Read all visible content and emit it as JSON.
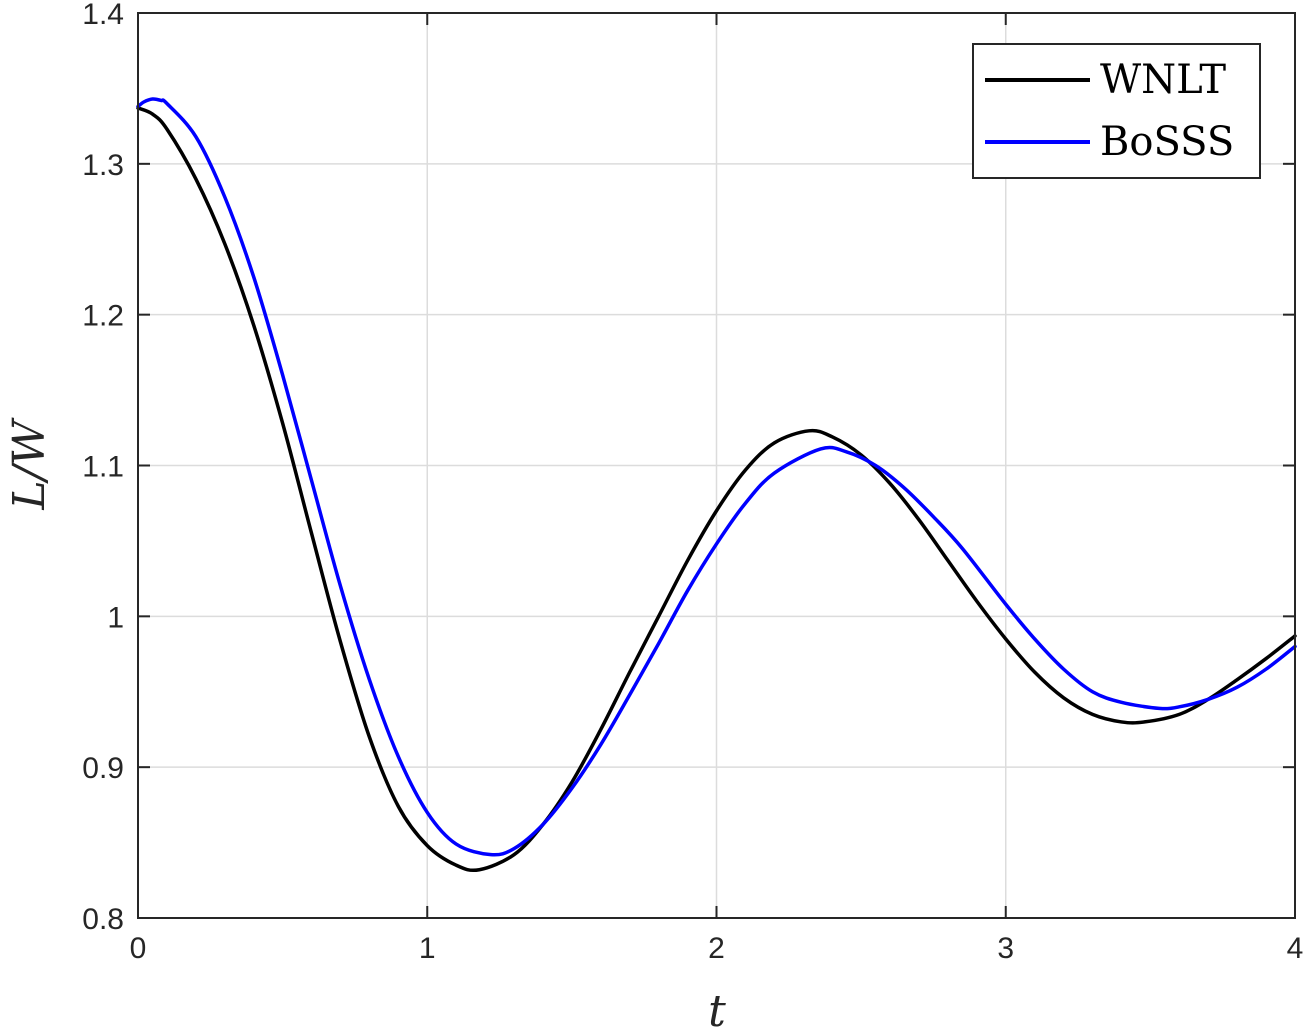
{
  "chart_data": {
    "type": "line",
    "xlabel": "t",
    "ylabel": "L/W",
    "xlim": [
      0,
      4
    ],
    "ylim": [
      0.8,
      1.4
    ],
    "xticks": [
      0,
      1,
      2,
      3,
      4
    ],
    "xtick_labels": [
      "0",
      "1",
      "2",
      "3",
      "4"
    ],
    "yticks": [
      0.8,
      0.9,
      1.0,
      1.1,
      1.2,
      1.3,
      1.4
    ],
    "ytick_labels": [
      "0.8",
      "0.9",
      "1",
      "1.1",
      "1.2",
      "1.3",
      "1.4"
    ],
    "grid": true,
    "legend_position": "top-right",
    "series": [
      {
        "name": "WNLT",
        "color": "#000000",
        "x": [
          0,
          0.05,
          0.1,
          0.2,
          0.3,
          0.4,
          0.5,
          0.6,
          0.7,
          0.8,
          0.9,
          1.0,
          1.1,
          1.18,
          1.3,
          1.4,
          1.5,
          1.6,
          1.7,
          1.8,
          1.9,
          2.0,
          2.1,
          2.2,
          2.32,
          2.4,
          2.5,
          2.6,
          2.7,
          2.8,
          2.9,
          3.0,
          3.1,
          3.2,
          3.3,
          3.4,
          3.48,
          3.6,
          3.7,
          3.8,
          3.9,
          4.0
        ],
        "y": [
          1.337,
          1.333,
          1.323,
          1.29,
          1.247,
          1.193,
          1.128,
          1.055,
          0.983,
          0.92,
          0.874,
          0.848,
          0.835,
          0.832,
          0.842,
          0.862,
          0.89,
          0.925,
          0.963,
          1.0,
          1.037,
          1.07,
          1.097,
          1.115,
          1.123,
          1.119,
          1.107,
          1.088,
          1.064,
          1.037,
          1.01,
          0.985,
          0.963,
          0.946,
          0.935,
          0.93,
          0.93,
          0.935,
          0.945,
          0.958,
          0.972,
          0.987
        ]
      },
      {
        "name": "BoSSS",
        "color": "#0000ff",
        "x": [
          0,
          0.02,
          0.05,
          0.08,
          0.1,
          0.2,
          0.3,
          0.4,
          0.5,
          0.6,
          0.7,
          0.8,
          0.9,
          1.0,
          1.1,
          1.22,
          1.3,
          1.4,
          1.5,
          1.6,
          1.7,
          1.8,
          1.9,
          2.0,
          2.1,
          2.2,
          2.36,
          2.45,
          2.55,
          2.65,
          2.75,
          2.85,
          3.0,
          3.1,
          3.2,
          3.3,
          3.4,
          3.53,
          3.6,
          3.7,
          3.8,
          3.9,
          4.0
        ],
        "y": [
          1.338,
          1.341,
          1.343,
          1.342,
          1.34,
          1.318,
          1.278,
          1.225,
          1.16,
          1.09,
          1.02,
          0.958,
          0.907,
          0.87,
          0.849,
          0.842,
          0.846,
          0.862,
          0.886,
          0.915,
          0.948,
          0.982,
          1.017,
          1.048,
          1.075,
          1.095,
          1.111,
          1.109,
          1.1,
          1.085,
          1.066,
          1.045,
          1.008,
          0.985,
          0.965,
          0.95,
          0.943,
          0.939,
          0.94,
          0.945,
          0.953,
          0.965,
          0.98
        ]
      }
    ]
  }
}
